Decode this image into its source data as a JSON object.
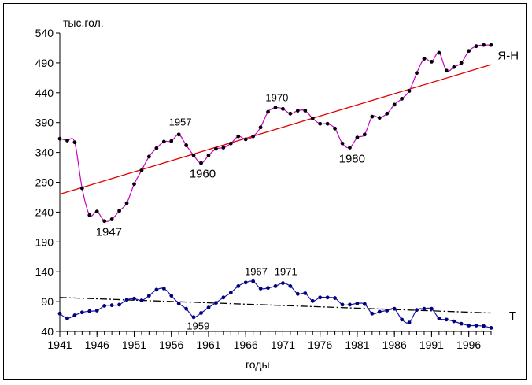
{
  "chart_data": {
    "type": "line",
    "ylabel": "тыс.гол.",
    "xlabel": "годы",
    "xlim": [
      1941,
      1999
    ],
    "ylim": [
      40,
      540
    ],
    "x_ticks": [
      1941,
      1946,
      1951,
      1956,
      1961,
      1966,
      1971,
      1976,
      1981,
      1986,
      1991,
      1996
    ],
    "y_ticks": [
      40,
      90,
      140,
      190,
      240,
      290,
      340,
      390,
      440,
      490,
      540
    ],
    "grid": false,
    "series": [
      {
        "name": "Я-Н",
        "color": "#cc00cc",
        "marker_color": "#000000",
        "x": [
          1941,
          1942,
          1943,
          1944,
          1945,
          1946,
          1947,
          1948,
          1949,
          1950,
          1951,
          1952,
          1953,
          1954,
          1955,
          1956,
          1957,
          1958,
          1959,
          1960,
          1961,
          1962,
          1963,
          1964,
          1965,
          1966,
          1967,
          1968,
          1969,
          1970,
          1971,
          1972,
          1973,
          1974,
          1975,
          1976,
          1977,
          1978,
          1979,
          1980,
          1981,
          1982,
          1983,
          1984,
          1985,
          1986,
          1987,
          1988,
          1989,
          1990,
          1991,
          1992,
          1993,
          1994,
          1995,
          1996,
          1997,
          1998,
          1999
        ],
        "values": [
          363,
          360,
          357,
          280,
          235,
          241,
          225,
          228,
          242,
          255,
          287,
          310,
          333,
          347,
          358,
          359,
          370,
          352,
          335,
          322,
          335,
          346,
          348,
          355,
          367,
          362,
          367,
          382,
          408,
          415,
          413,
          405,
          410,
          410,
          397,
          388,
          388,
          380,
          355,
          348,
          365,
          370,
          400,
          398,
          405,
          420,
          430,
          443,
          473,
          497,
          492,
          507,
          477,
          483,
          490,
          510,
          518,
          520,
          520
        ]
      },
      {
        "name": "Т",
        "color": "#1a1aa0",
        "marker_color": "#000080",
        "x": [
          1941,
          1942,
          1943,
          1944,
          1945,
          1946,
          1947,
          1948,
          1949,
          1950,
          1951,
          1952,
          1953,
          1954,
          1955,
          1956,
          1957,
          1958,
          1959,
          1960,
          1961,
          1962,
          1963,
          1964,
          1965,
          1966,
          1967,
          1968,
          1969,
          1970,
          1971,
          1972,
          1973,
          1974,
          1975,
          1976,
          1977,
          1978,
          1979,
          1980,
          1981,
          1982,
          1983,
          1984,
          1985,
          1986,
          1987,
          1988,
          1989,
          1990,
          1991,
          1992,
          1993,
          1994,
          1995,
          1996,
          1997,
          1998,
          1999
        ],
        "values": [
          70,
          62,
          67,
          72,
          74,
          75,
          83,
          84,
          85,
          93,
          95,
          92,
          100,
          110,
          112,
          100,
          87,
          78,
          64,
          71,
          80,
          88,
          97,
          105,
          116,
          122,
          124,
          112,
          113,
          116,
          121,
          116,
          103,
          104,
          91,
          97,
          97,
          96,
          85,
          85,
          87,
          86,
          70,
          73,
          75,
          78,
          60,
          55,
          76,
          78,
          78,
          62,
          60,
          57,
          53,
          50,
          50,
          49,
          46
        ]
      }
    ],
    "trend_lines": [
      {
        "series": "Я-Н",
        "color": "#e00000",
        "style": "solid",
        "x": [
          1941,
          1999
        ],
        "values": [
          270,
          487
        ]
      },
      {
        "series": "Т",
        "color": "#000000",
        "style": "dash-dot",
        "x": [
          1941,
          1999
        ],
        "values": [
          97,
          71
        ]
      }
    ],
    "annotations": [
      {
        "text": "1947",
        "x": 1947.6,
        "y": 200,
        "size": "big"
      },
      {
        "text": "1957",
        "x": 1957.2,
        "y": 385,
        "size": "small"
      },
      {
        "text": "1960",
        "x": 1960.2,
        "y": 298,
        "size": "big"
      },
      {
        "text": "1970",
        "x": 1970.2,
        "y": 426,
        "size": "small"
      },
      {
        "text": "1980",
        "x": 1980.3,
        "y": 323,
        "size": "big"
      },
      {
        "text": "1967",
        "x": 1967.4,
        "y": 134,
        "size": "small"
      },
      {
        "text": "1971",
        "x": 1971.4,
        "y": 134,
        "size": "small"
      },
      {
        "text": "1959",
        "x": 1959.6,
        "y": 43,
        "size": "small"
      },
      {
        "text": "Я-Н",
        "x": 2001.3,
        "y": 496,
        "size": "big"
      },
      {
        "text": "Т",
        "x": 2001.9,
        "y": 60,
        "size": "big"
      }
    ]
  }
}
